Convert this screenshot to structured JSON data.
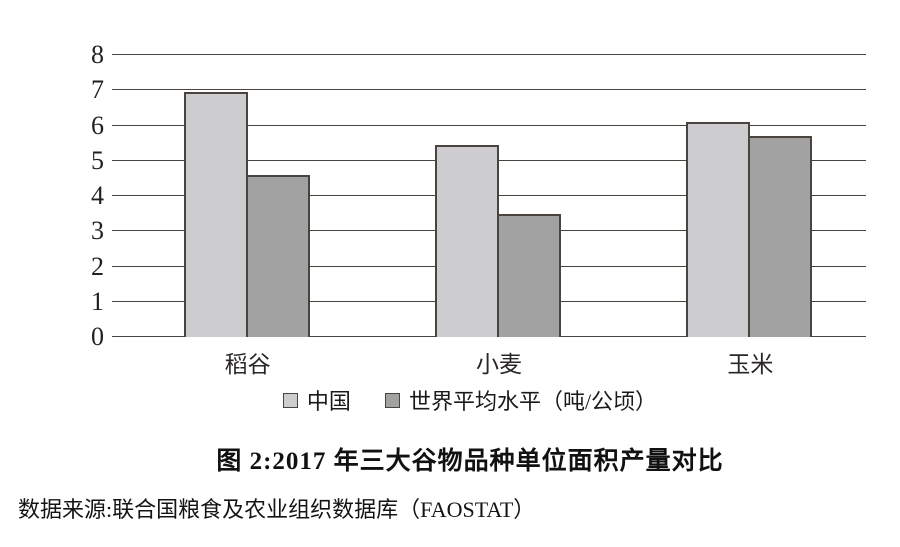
{
  "title": "图 2:2017 年三大谷物品种单位面积产量对比",
  "source": "数据来源:联合国粮食及农业组织数据库（FAOSTAT）",
  "colors": {
    "series_china": "#cdcdcf",
    "series_world": "#a2a2a2",
    "line": "#4a443f",
    "background": "#ffffff"
  },
  "chart_data": {
    "type": "bar",
    "categories": [
      "稻谷",
      "小麦",
      "玉米"
    ],
    "series": [
      {
        "name": "中国",
        "color": "#cdcdcf",
        "values": [
          6.95,
          5.45,
          6.1
        ]
      },
      {
        "name": "世界平均水平（吨/公顷）",
        "color": "#a2a2a2",
        "values": [
          4.6,
          3.5,
          5.7
        ]
      }
    ],
    "xlabel": "",
    "ylabel": "",
    "ylim": [
      0,
      8
    ],
    "yticks": [
      0,
      1,
      2,
      3,
      4,
      5,
      6,
      7,
      8
    ],
    "grid": true,
    "legend_position": "bottom",
    "unit": "吨/公顷"
  }
}
